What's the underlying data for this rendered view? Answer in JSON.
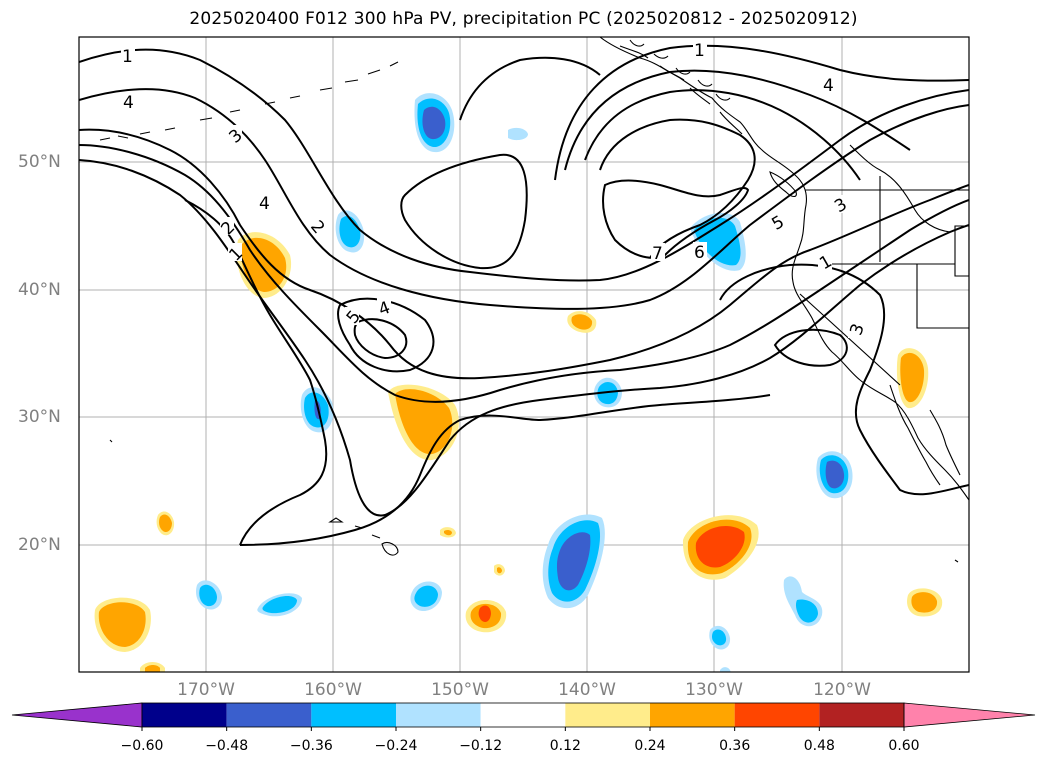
{
  "title": "2025020400 F012 300 hPa PV, precipitation PC (2025020812 - 2025020912)",
  "map": {
    "lat_labels": [
      "50°N",
      "40°N",
      "30°N",
      "20°N"
    ],
    "lon_labels": [
      "170°W",
      "160°W",
      "150°W",
      "140°W",
      "130°W",
      "120°W"
    ],
    "lat_range": [
      10,
      60
    ],
    "lon_range": [
      -180,
      -110
    ],
    "gridlines": true,
    "contour_labels": [
      "1",
      "3",
      "4",
      "5",
      "3",
      "2",
      "4",
      "2",
      "1",
      "5",
      "4",
      "7",
      "6",
      "5",
      "3",
      "1",
      "3",
      "1"
    ],
    "colors": {
      "contour": "#000000",
      "grid": "#b0b0b0",
      "tick_label": "#808080"
    }
  },
  "colorbar": {
    "ticks": [
      "−0.60",
      "−0.48",
      "−0.36",
      "−0.24",
      "−0.12",
      "0.12",
      "0.24",
      "0.36",
      "0.48",
      "0.60"
    ],
    "colors": [
      "#9932cc",
      "#00008b",
      "#3a5fcd",
      "#00bfff",
      "#b0e2ff",
      "#ffffff",
      "#ffec8b",
      "#ffa500",
      "#ff4500",
      "#b22222",
      "#ff82ab"
    ]
  }
}
